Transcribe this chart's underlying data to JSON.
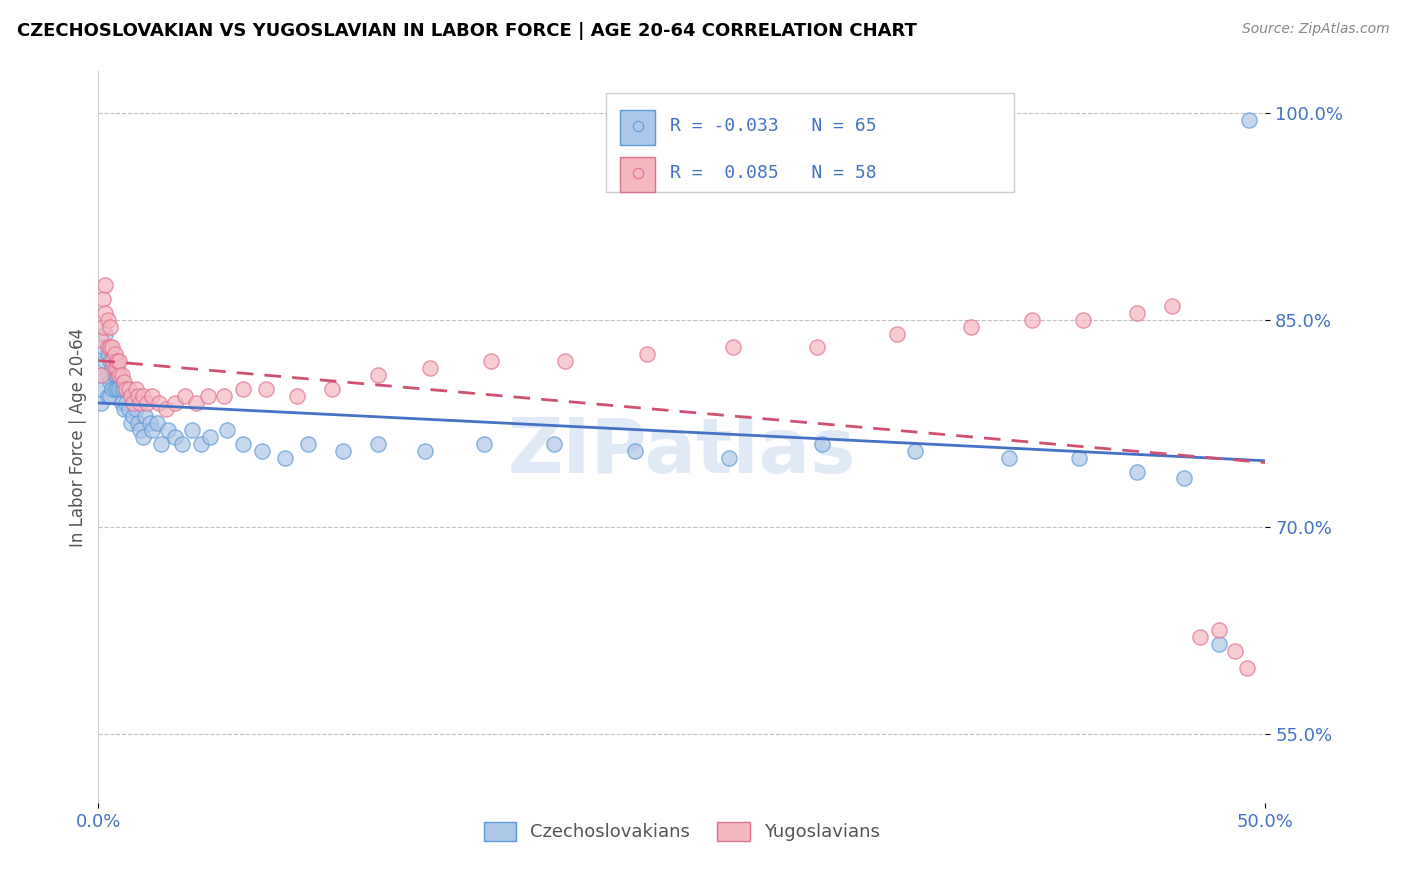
{
  "title": "CZECHOSLOVAKIAN VS YUGOSLAVIAN IN LABOR FORCE | AGE 20-64 CORRELATION CHART",
  "source_text": "Source: ZipAtlas.com",
  "ylabel": "In Labor Force | Age 20-64",
  "xlim": [
    0.0,
    0.5
  ],
  "ylim": [
    0.5,
    1.03
  ],
  "xtick_positions": [
    0.0,
    0.5
  ],
  "xtick_labels": [
    "0.0%",
    "50.0%"
  ],
  "ytick_values": [
    0.55,
    0.7,
    0.85,
    1.0
  ],
  "ytick_labels": [
    "55.0%",
    "70.0%",
    "85.0%",
    "100.0%"
  ],
  "czechoslovakians_fill": "#aec6e8",
  "czechoslovakians_edge": "#5b9bd5",
  "yugoslavians_fill": "#f4b8c1",
  "yugoslavians_edge": "#e07090",
  "trend_czech_color": "#4472c4",
  "trend_yugo_color": "#d05070",
  "watermark": "ZIPatlas",
  "R_czech": -0.033,
  "R_yugo": 0.085,
  "N_czech": 65,
  "N_yugo": 58,
  "czech_x": [
    0.001,
    0.001,
    0.002,
    0.002,
    0.003,
    0.003,
    0.004,
    0.004,
    0.004,
    0.005,
    0.005,
    0.005,
    0.006,
    0.006,
    0.007,
    0.007,
    0.007,
    0.008,
    0.008,
    0.008,
    0.009,
    0.009,
    0.01,
    0.01,
    0.011,
    0.011,
    0.012,
    0.013,
    0.014,
    0.015,
    0.016,
    0.017,
    0.018,
    0.019,
    0.02,
    0.022,
    0.023,
    0.025,
    0.027,
    0.03,
    0.033,
    0.036,
    0.04,
    0.044,
    0.048,
    0.055,
    0.062,
    0.07,
    0.08,
    0.09,
    0.105,
    0.12,
    0.14,
    0.165,
    0.195,
    0.23,
    0.27,
    0.31,
    0.35,
    0.39,
    0.42,
    0.445,
    0.465,
    0.48,
    0.493
  ],
  "czech_y": [
    0.79,
    0.8,
    0.81,
    0.83,
    0.82,
    0.84,
    0.795,
    0.81,
    0.825,
    0.795,
    0.805,
    0.82,
    0.8,
    0.815,
    0.8,
    0.81,
    0.82,
    0.8,
    0.81,
    0.82,
    0.8,
    0.81,
    0.79,
    0.8,
    0.785,
    0.8,
    0.79,
    0.785,
    0.775,
    0.78,
    0.785,
    0.775,
    0.77,
    0.765,
    0.78,
    0.775,
    0.77,
    0.775,
    0.76,
    0.77,
    0.765,
    0.76,
    0.77,
    0.76,
    0.765,
    0.77,
    0.76,
    0.755,
    0.75,
    0.76,
    0.755,
    0.76,
    0.755,
    0.76,
    0.76,
    0.755,
    0.75,
    0.76,
    0.755,
    0.75,
    0.75,
    0.74,
    0.735,
    0.615,
    0.995
  ],
  "yugo_x": [
    0.001,
    0.001,
    0.002,
    0.002,
    0.003,
    0.003,
    0.004,
    0.004,
    0.005,
    0.005,
    0.006,
    0.006,
    0.007,
    0.007,
    0.008,
    0.008,
    0.009,
    0.009,
    0.01,
    0.011,
    0.012,
    0.013,
    0.014,
    0.015,
    0.016,
    0.017,
    0.018,
    0.019,
    0.021,
    0.023,
    0.026,
    0.029,
    0.033,
    0.037,
    0.042,
    0.047,
    0.054,
    0.062,
    0.072,
    0.085,
    0.1,
    0.12,
    0.142,
    0.168,
    0.2,
    0.235,
    0.272,
    0.308,
    0.342,
    0.374,
    0.4,
    0.422,
    0.445,
    0.46,
    0.472,
    0.48,
    0.487,
    0.492
  ],
  "yugo_y": [
    0.81,
    0.835,
    0.845,
    0.865,
    0.855,
    0.875,
    0.83,
    0.85,
    0.83,
    0.845,
    0.82,
    0.83,
    0.815,
    0.825,
    0.815,
    0.82,
    0.81,
    0.82,
    0.81,
    0.805,
    0.8,
    0.8,
    0.795,
    0.79,
    0.8,
    0.795,
    0.79,
    0.795,
    0.79,
    0.795,
    0.79,
    0.785,
    0.79,
    0.795,
    0.79,
    0.795,
    0.795,
    0.8,
    0.8,
    0.795,
    0.8,
    0.81,
    0.815,
    0.82,
    0.82,
    0.825,
    0.83,
    0.83,
    0.84,
    0.845,
    0.85,
    0.85,
    0.855,
    0.86,
    0.62,
    0.625,
    0.61,
    0.598
  ]
}
